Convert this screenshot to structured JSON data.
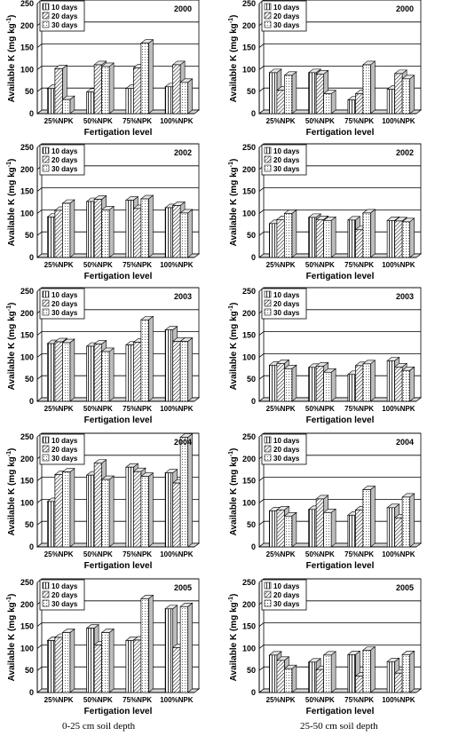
{
  "caption": {
    "left": "0-25 cm soil depth",
    "right": "25-50 cm soil depth"
  },
  "chart_data": [
    {
      "type": "bar",
      "year": "2000",
      "depth": "0-25",
      "categories": [
        "25%NPK",
        "50%NPK",
        "75%NPK",
        "100%NPK"
      ],
      "series": [
        {
          "name": "10 days",
          "values": [
            57,
            49,
            57,
            61
          ]
        },
        {
          "name": "20 days",
          "values": [
            102,
            111,
            104,
            111
          ]
        },
        {
          "name": "30 days",
          "values": [
            32,
            107,
            160,
            71
          ]
        }
      ],
      "xlabel": "Fertigation level",
      "ylabel": "Available K (mg kg-1)",
      "ylim": [
        0,
        250
      ],
      "yticks": [
        0,
        50,
        100,
        150,
        200,
        250
      ]
    },
    {
      "type": "bar",
      "year": "2000",
      "depth": "25-50",
      "categories": [
        "25%NPK",
        "50%NPK",
        "75%NPK",
        "100%NPK"
      ],
      "series": [
        {
          "name": "10 days",
          "values": [
            93,
            93,
            31,
            55
          ]
        },
        {
          "name": "20 days",
          "values": [
            53,
            90,
            45,
            91
          ]
        },
        {
          "name": "30 days",
          "values": [
            87,
            45,
            111,
            79
          ]
        }
      ],
      "xlabel": "Fertigation level",
      "ylabel": "Available K (mg kg-1)",
      "ylim": [
        0,
        250
      ],
      "yticks": [
        0,
        50,
        100,
        150,
        200,
        250
      ]
    },
    {
      "type": "bar",
      "year": "2002",
      "depth": "0-25",
      "categories": [
        "25%NPK",
        "50%NPK",
        "75%NPK",
        "100%NPK"
      ],
      "series": [
        {
          "name": "10 days",
          "values": [
            92,
            127,
            130,
            113
          ]
        },
        {
          "name": "20 days",
          "values": [
            107,
            132,
            111,
            118
          ]
        },
        {
          "name": "30 days",
          "values": [
            123,
            108,
            133,
            101
          ]
        }
      ],
      "xlabel": "Fertigation level",
      "ylabel": "Available K (mg kg-1)",
      "ylim": [
        0,
        250
      ],
      "yticks": [
        0,
        50,
        100,
        150,
        200,
        250
      ]
    },
    {
      "type": "bar",
      "year": "2002",
      "depth": "25-50",
      "categories": [
        "25%NPK",
        "50%NPK",
        "75%NPK",
        "100%NPK"
      ],
      "series": [
        {
          "name": "10 days",
          "values": [
            77,
            91,
            85,
            84
          ]
        },
        {
          "name": "20 days",
          "values": [
            86,
            86,
            63,
            83
          ]
        },
        {
          "name": "30 days",
          "values": [
            100,
            84,
            101,
            81
          ]
        }
      ],
      "xlabel": "Fertigation level",
      "ylabel": "Available K (mg kg-1)",
      "ylim": [
        0,
        250
      ],
      "yticks": [
        0,
        50,
        100,
        150,
        200,
        250
      ]
    },
    {
      "type": "bar",
      "year": "2003",
      "depth": "0-25",
      "categories": [
        "25%NPK",
        "50%NPK",
        "75%NPK",
        "100%NPK"
      ],
      "series": [
        {
          "name": "10 days",
          "values": [
            131,
            125,
            128,
            162
          ]
        },
        {
          "name": "20 days",
          "values": [
            135,
            130,
            134,
            136
          ]
        },
        {
          "name": "30 days",
          "values": [
            133,
            113,
            185,
            136
          ]
        }
      ],
      "xlabel": "Fertigation level",
      "ylabel": "Available K (mg kg-1)",
      "ylim": [
        0,
        250
      ],
      "yticks": [
        0,
        50,
        100,
        150,
        200,
        250
      ]
    },
    {
      "type": "bar",
      "year": "2003",
      "depth": "25-50",
      "categories": [
        "25%NPK",
        "50%NPK",
        "75%NPK",
        "100%NPK"
      ],
      "series": [
        {
          "name": "10 days",
          "values": [
            82,
            77,
            61,
            92
          ]
        },
        {
          "name": "20 days",
          "values": [
            86,
            80,
            81,
            78
          ]
        },
        {
          "name": "30 days",
          "values": [
            74,
            66,
            85,
            70
          ]
        }
      ],
      "xlabel": "Fertigation level",
      "ylabel": "Available K (mg kg-1)",
      "ylim": [
        0,
        250
      ],
      "yticks": [
        0,
        50,
        100,
        150,
        200,
        250
      ]
    },
    {
      "type": "bar",
      "year": "2004",
      "depth": "0-25",
      "categories": [
        "25%NPK",
        "50%NPK",
        "75%NPK",
        "100%NPK"
      ],
      "series": [
        {
          "name": "10 days",
          "values": [
            103,
            163,
            181,
            168
          ]
        },
        {
          "name": "20 days",
          "values": [
            164,
            190,
            171,
            145
          ]
        },
        {
          "name": "30 days",
          "values": [
            170,
            153,
            160,
            249
          ]
        }
      ],
      "xlabel": "Fertigation level",
      "ylabel": "Available K (mg kg-1)",
      "ylim": [
        0,
        250
      ],
      "yticks": [
        0,
        50,
        100,
        150,
        200,
        250
      ]
    },
    {
      "type": "bar",
      "year": "2004",
      "depth": "25-50",
      "categories": [
        "25%NPK",
        "50%NPK",
        "75%NPK",
        "100%NPK"
      ],
      "series": [
        {
          "name": "10 days",
          "values": [
            82,
            85,
            72,
            89
          ]
        },
        {
          "name": "20 days",
          "values": [
            84,
            109,
            84,
            66
          ]
        },
        {
          "name": "30 days",
          "values": [
            70,
            78,
            130,
            113
          ]
        }
      ],
      "xlabel": "Fertigation level",
      "ylabel": "Available K (mg kg-1)",
      "ylim": [
        0,
        250
      ],
      "yticks": [
        0,
        50,
        100,
        150,
        200,
        250
      ]
    },
    {
      "type": "bar",
      "year": "2005",
      "depth": "0-25",
      "categories": [
        "25%NPK",
        "50%NPK",
        "75%NPK",
        "100%NPK"
      ],
      "series": [
        {
          "name": "10 days",
          "values": [
            118,
            146,
            118,
            190
          ]
        },
        {
          "name": "20 days",
          "values": [
            125,
            108,
            119,
            102
          ]
        },
        {
          "name": "30 days",
          "values": [
            136,
            136,
            213,
            195
          ]
        }
      ],
      "xlabel": "Fertigation level",
      "ylabel": "Available K (mg kg-1)",
      "ylim": [
        0,
        250
      ],
      "yticks": [
        0,
        50,
        100,
        150,
        200,
        250
      ]
    },
    {
      "type": "bar",
      "year": "2005",
      "depth": "25-50",
      "categories": [
        "25%NPK",
        "50%NPK",
        "75%NPK",
        "100%NPK"
      ],
      "series": [
        {
          "name": "10 days",
          "values": [
            85,
            69,
            86,
            70
          ]
        },
        {
          "name": "20 days",
          "values": [
            73,
            52,
            37,
            44
          ]
        },
        {
          "name": "30 days",
          "values": [
            54,
            85,
            96,
            86
          ]
        }
      ],
      "xlabel": "Fertigation level",
      "ylabel": "Available K (mg kg-1)",
      "ylim": [
        0,
        250
      ],
      "yticks": [
        0,
        50,
        100,
        150,
        200,
        250
      ]
    }
  ]
}
